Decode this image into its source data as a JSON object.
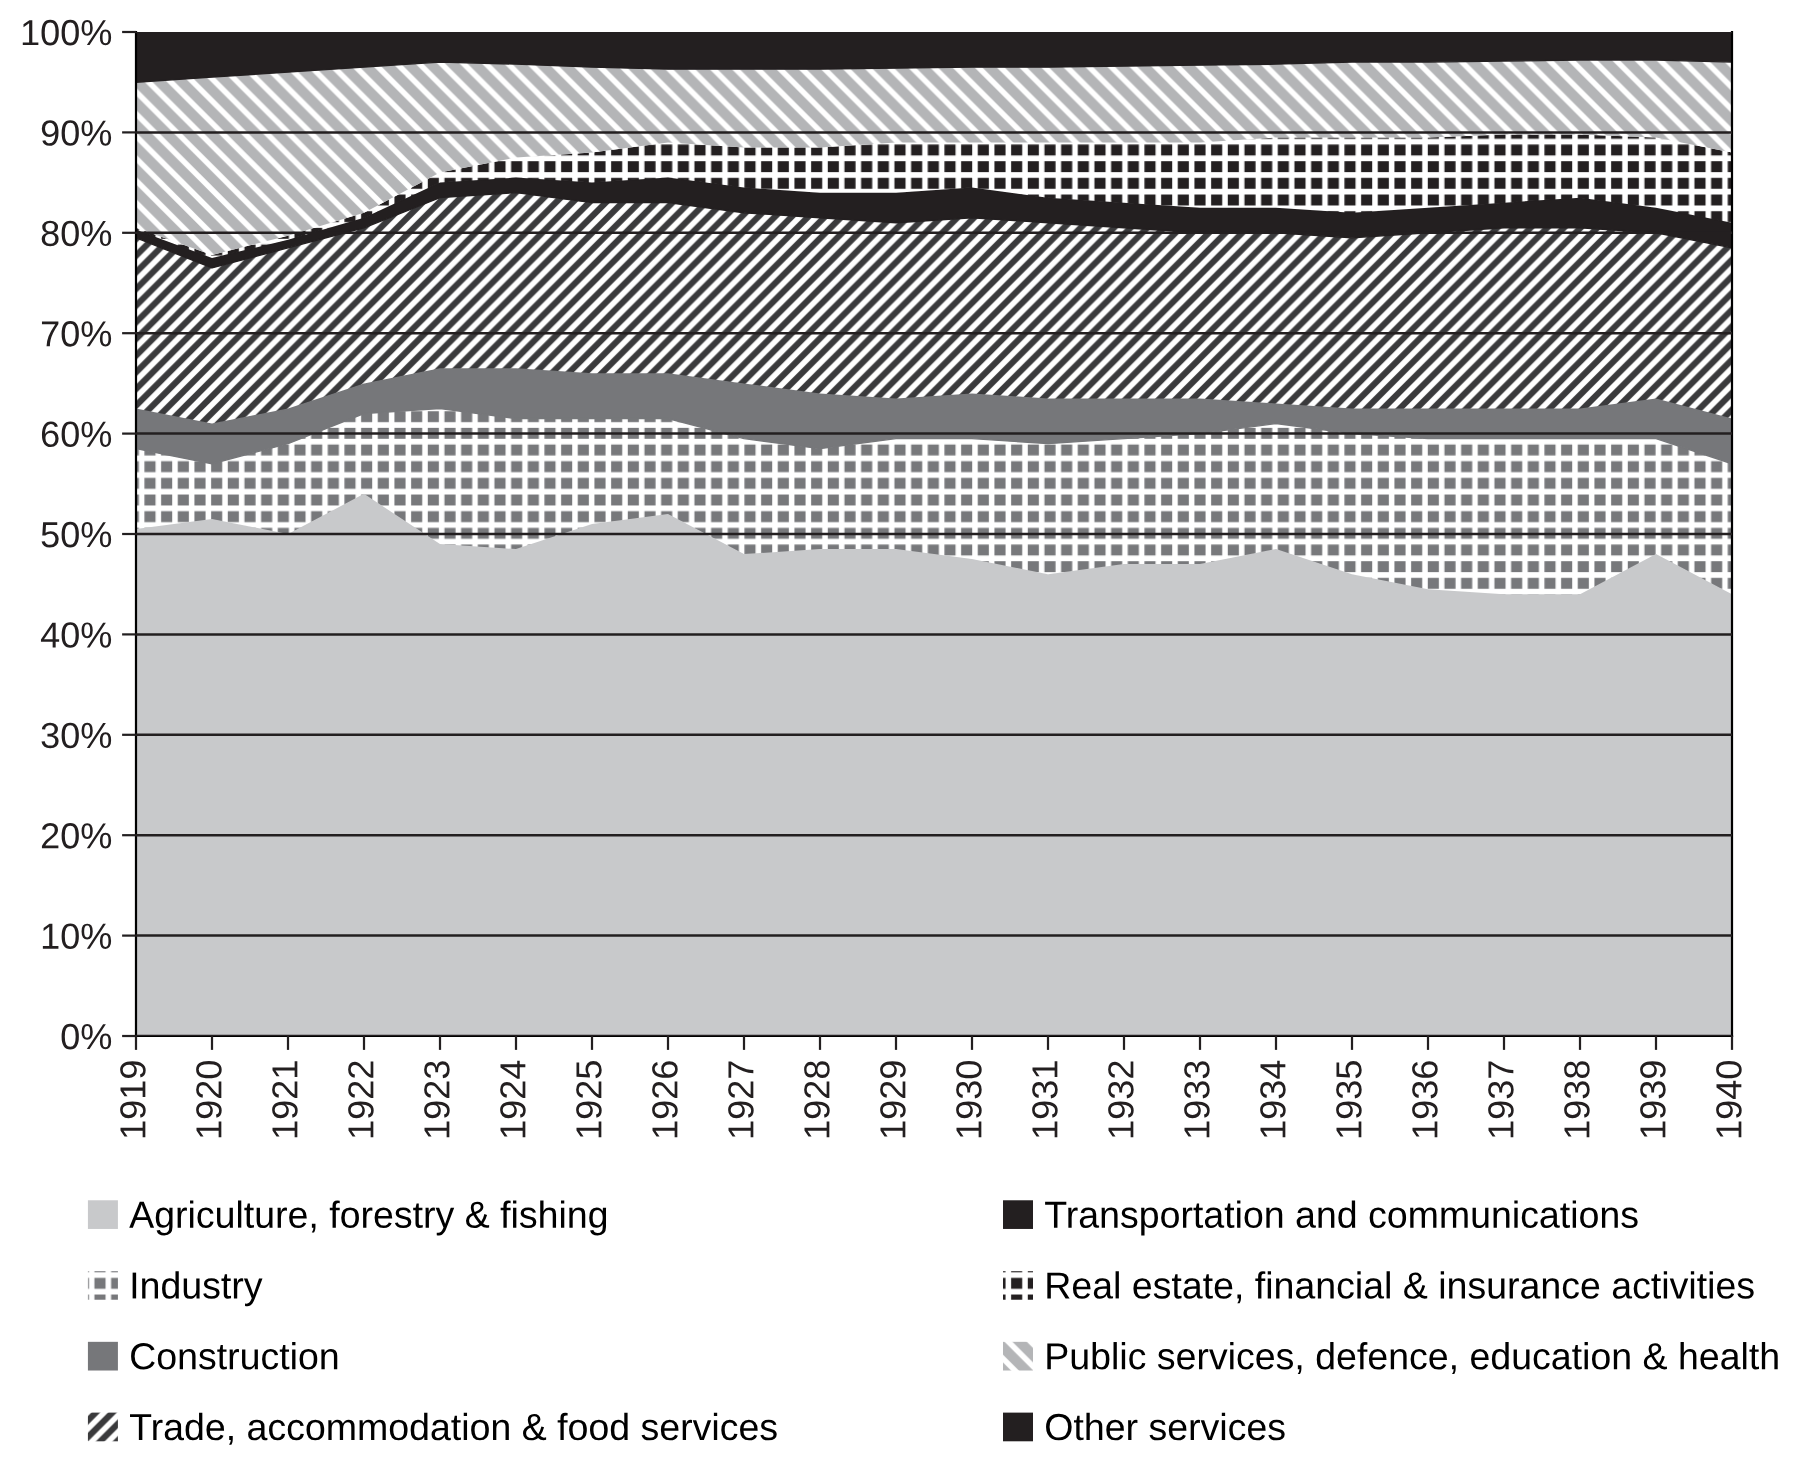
{
  "chart_data": {
    "type": "area",
    "stacked": true,
    "categories": [
      "1919",
      "1920",
      "1921",
      "1922",
      "1923",
      "1924",
      "1925",
      "1926",
      "1927",
      "1928",
      "1929",
      "1930",
      "1931",
      "1932",
      "1933",
      "1934",
      "1935",
      "1936",
      "1937",
      "1938",
      "1939",
      "1940"
    ],
    "series": [
      {
        "name": "Agriculture, forestry & fishing",
        "color": "#c8c9cb",
        "values": [
          50.5,
          51.5,
          50,
          54,
          49,
          48.5,
          51,
          52,
          48,
          48.5,
          48.5,
          47.5,
          46,
          47,
          47,
          48.5,
          46,
          44.5,
          44,
          44,
          48,
          44
        ]
      },
      {
        "name": "Industry",
        "color": "#77787b",
        "values": [
          8,
          5.5,
          9,
          8,
          13.5,
          13,
          10.5,
          9.5,
          11.5,
          10,
          11,
          12,
          13,
          12.5,
          13,
          12.5,
          14,
          15,
          15.5,
          15.5,
          11.5,
          13
        ]
      },
      {
        "name": "Construction",
        "color": "#76777a",
        "values": [
          4,
          4,
          3.5,
          3,
          4,
          5,
          4.5,
          4.5,
          5.5,
          5.5,
          4,
          4.5,
          4.5,
          4,
          3.5,
          2,
          2.5,
          3,
          3,
          3,
          4,
          4.5
        ]
      },
      {
        "name": "Trade, accommodation & food services",
        "color": "#3a3a3c",
        "values": [
          17,
          15.5,
          16,
          15.5,
          17,
          17.5,
          17,
          17,
          17,
          17.5,
          17.5,
          17.5,
          17.5,
          17,
          16.5,
          17,
          17,
          17.5,
          18,
          18,
          16.5,
          17
        ]
      },
      {
        "name": "Transportation and communications",
        "color": "#231f20",
        "values": [
          0.8,
          1,
          0.8,
          1,
          1.5,
          1.5,
          2,
          2.5,
          2.5,
          2.5,
          3,
          3,
          2.5,
          2.5,
          2.5,
          2.5,
          2.5,
          2.5,
          2.5,
          3,
          2.5,
          2.5
        ]
      },
      {
        "name": "Real estate, financial & insurance activities",
        "color": "#231f20",
        "values": [
          0.2,
          0.3,
          0.4,
          0.5,
          1,
          2,
          3,
          3.5,
          4,
          4.5,
          5,
          4.5,
          5.5,
          6,
          6.5,
          7,
          7.5,
          7,
          6.8,
          6.3,
          7,
          7
        ]
      },
      {
        "name": "Public services, defence, education & health",
        "color": "#b4b5b7",
        "values": [
          14.5,
          17.7,
          16.3,
          14.5,
          11,
          9.3,
          8.5,
          7.3,
          7.8,
          7.8,
          7.4,
          7.5,
          7.5,
          7.6,
          7.7,
          7.3,
          7.5,
          7.5,
          7.3,
          7.4,
          7.7,
          9
        ]
      },
      {
        "name": "Other services",
        "color": "#231f20",
        "values": [
          5,
          4.5,
          4,
          3.5,
          3,
          3.2,
          3.5,
          3.7,
          3.7,
          3.7,
          3.6,
          3.5,
          3.5,
          3.4,
          3.3,
          3.2,
          3,
          3,
          2.9,
          2.8,
          2.8,
          3
        ]
      }
    ],
    "ylim": [
      0,
      100
    ],
    "yticks": [
      {
        "value": 0,
        "label": "0%"
      },
      {
        "value": 10,
        "label": "10%"
      },
      {
        "value": 20,
        "label": "20%"
      },
      {
        "value": 30,
        "label": "30%"
      },
      {
        "value": 40,
        "label": "40%"
      },
      {
        "value": 50,
        "label": "50%"
      },
      {
        "value": 60,
        "label": "60%"
      },
      {
        "value": 70,
        "label": "70%"
      },
      {
        "value": 80,
        "label": "80%"
      },
      {
        "value": 90,
        "label": "90%"
      },
      {
        "value": 100,
        "label": "100%"
      }
    ],
    "grid": "y",
    "legend": "bottom"
  }
}
